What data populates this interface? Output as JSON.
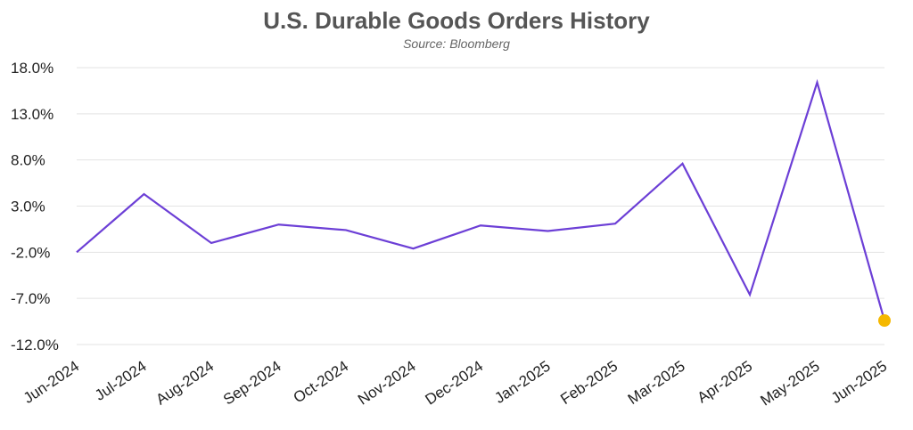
{
  "chart_data": {
    "type": "line",
    "title": "U.S. Durable Goods Orders History",
    "subtitle": "Source: Bloomberg",
    "categories": [
      "Jun-2024",
      "Jul-2024",
      "Aug-2024",
      "Sep-2024",
      "Oct-2024",
      "Nov-2024",
      "Dec-2024",
      "Jan-2025",
      "Feb-2025",
      "Mar-2025",
      "Apr-2025",
      "May-2025",
      "Jun-2025"
    ],
    "series": [
      {
        "values": [
          -2.0,
          4.3,
          -1.0,
          1.0,
          0.4,
          -1.6,
          0.9,
          0.3,
          1.1,
          7.6,
          -6.6,
          16.4,
          -9.4
        ]
      }
    ],
    "yticks": [
      "18.0%",
      "13.0%",
      "8.0%",
      "3.0%",
      "-2.0%",
      "-7.0%",
      "-12.0%"
    ],
    "ylim": [
      -12,
      18
    ],
    "grid": true,
    "legend": "none",
    "colors": {
      "line": "#6c3fd6",
      "last_point": "#f5b800",
      "grid": "#e3e3e3"
    }
  }
}
